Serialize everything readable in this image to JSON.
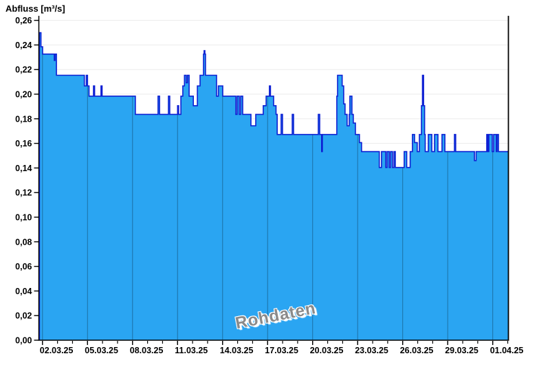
{
  "title": "Abfluss [m³/s]",
  "watermark": "Rohdaten",
  "colors": {
    "fill": "#2aa5f2",
    "line": "#0d1fd3",
    "axis": "#000000",
    "h_grid": "#ebebeb",
    "v_grid_on_fill": "rgba(0,0,0,0.32)",
    "label": "#000000",
    "watermark": "#8a8a8a"
  },
  "chart_data": {
    "type": "area",
    "subtype": "step-after",
    "title": "Abfluss [m³/s]",
    "xlabel": "",
    "ylabel": "Abfluss [m³/s]",
    "legend": "none",
    "grid": "horizontal light, vertical only visible inside filled area",
    "x_axis": {
      "unit": "date (day offset, 1 = 02.03.25 tick origin 01.03.25+1)",
      "range_days": [
        0.78,
        32.04
      ],
      "major_ticks": [
        {
          "day": 1,
          "label": "02.03.25"
        },
        {
          "day": 4,
          "label": "05.03.25"
        },
        {
          "day": 7,
          "label": "08.03.25"
        },
        {
          "day": 10,
          "label": "11.03.25"
        },
        {
          "day": 13,
          "label": "14.03.25"
        },
        {
          "day": 16,
          "label": "17.03.25"
        },
        {
          "day": 19,
          "label": "20.03.25"
        },
        {
          "day": 22,
          "label": "23.03.25"
        },
        {
          "day": 25,
          "label": "26.03.25"
        },
        {
          "day": 28,
          "label": "29.03.25"
        },
        {
          "day": 31,
          "label": "01.04.25"
        }
      ],
      "minor_tick_every_days": 1,
      "minor_tick_days": [
        1,
        2,
        3,
        4,
        5,
        6,
        7,
        8,
        9,
        10,
        11,
        12,
        13,
        14,
        15,
        16,
        17,
        18,
        19,
        20,
        21,
        22,
        23,
        24,
        25,
        26,
        27,
        28,
        29,
        30,
        31,
        32
      ]
    },
    "y_axis": {
      "unit": "m³/s",
      "ylim": [
        0,
        0.2637
      ],
      "ticks": [
        {
          "v": 0.0,
          "label": "0,00"
        },
        {
          "v": 0.02,
          "label": "0,02"
        },
        {
          "v": 0.04,
          "label": "0,04"
        },
        {
          "v": 0.06,
          "label": "0,06"
        },
        {
          "v": 0.08,
          "label": "0,08"
        },
        {
          "v": 0.1,
          "label": "0,10"
        },
        {
          "v": 0.12,
          "label": "0,12"
        },
        {
          "v": 0.14,
          "label": "0,14"
        },
        {
          "v": 0.16,
          "label": "0,16"
        },
        {
          "v": 0.18,
          "label": "0,18"
        },
        {
          "v": 0.2,
          "label": "0,20"
        },
        {
          "v": 0.22,
          "label": "0,22"
        },
        {
          "v": 0.24,
          "label": "0,24"
        },
        {
          "v": 0.26,
          "label": "0,26"
        }
      ]
    },
    "series": [
      {
        "name": "Rohdaten (Abfluss)",
        "end_day": 32.04,
        "points_day_value": [
          [
            0.8,
            0.25
          ],
          [
            0.9,
            0.2385
          ],
          [
            1.01,
            0.2326
          ],
          [
            1.79,
            0.2274
          ],
          [
            1.84,
            0.2326
          ],
          [
            1.93,
            0.2154
          ],
          [
            3.79,
            0.2067
          ],
          [
            3.92,
            0.2154
          ],
          [
            4.0,
            0.2067
          ],
          [
            4.1,
            0.1984
          ],
          [
            4.4,
            0.2067
          ],
          [
            4.47,
            0.1984
          ],
          [
            4.9,
            0.2067
          ],
          [
            4.97,
            0.1984
          ],
          [
            7.19,
            0.1836
          ],
          [
            8.7,
            0.1984
          ],
          [
            8.8,
            0.1836
          ],
          [
            9.39,
            0.1984
          ],
          [
            9.48,
            0.1836
          ],
          [
            10.0,
            0.1906
          ],
          [
            10.07,
            0.1836
          ],
          [
            10.22,
            0.1984
          ],
          [
            10.35,
            0.2067
          ],
          [
            10.46,
            0.2154
          ],
          [
            10.58,
            0.2093
          ],
          [
            10.66,
            0.2154
          ],
          [
            10.77,
            0.1984
          ],
          [
            11.05,
            0.1906
          ],
          [
            11.32,
            0.2067
          ],
          [
            11.5,
            0.2154
          ],
          [
            11.73,
            0.2326
          ],
          [
            11.77,
            0.2354
          ],
          [
            11.82,
            0.2326
          ],
          [
            11.86,
            0.2154
          ],
          [
            12.6,
            0.1984
          ],
          [
            12.72,
            0.2067
          ],
          [
            13.01,
            0.1984
          ],
          [
            13.88,
            0.1836
          ],
          [
            13.97,
            0.1984
          ],
          [
            14.11,
            0.1836
          ],
          [
            14.2,
            0.1984
          ],
          [
            14.34,
            0.1836
          ],
          [
            14.89,
            0.1743
          ],
          [
            15.21,
            0.1836
          ],
          [
            15.71,
            0.1906
          ],
          [
            15.9,
            0.1984
          ],
          [
            16.12,
            0.2067
          ],
          [
            16.19,
            0.1984
          ],
          [
            16.4,
            0.1906
          ],
          [
            16.56,
            0.1836
          ],
          [
            16.64,
            0.1672
          ],
          [
            16.9,
            0.1836
          ],
          [
            16.99,
            0.1672
          ],
          [
            17.64,
            0.1836
          ],
          [
            17.73,
            0.1672
          ],
          [
            19.38,
            0.1836
          ],
          [
            19.47,
            0.1672
          ],
          [
            19.6,
            0.1533
          ],
          [
            19.65,
            0.1672
          ],
          [
            20.61,
            0.1984
          ],
          [
            20.66,
            0.2154
          ],
          [
            20.97,
            0.2067
          ],
          [
            21.07,
            0.1921
          ],
          [
            21.16,
            0.1836
          ],
          [
            21.3,
            0.1743
          ],
          [
            21.44,
            0.1836
          ],
          [
            21.48,
            0.1984
          ],
          [
            21.62,
            0.1836
          ],
          [
            21.71,
            0.1765
          ],
          [
            21.85,
            0.1672
          ],
          [
            22.12,
            0.1607
          ],
          [
            22.26,
            0.1533
          ],
          [
            23.44,
            0.1404
          ],
          [
            23.59,
            0.1533
          ],
          [
            23.87,
            0.1404
          ],
          [
            23.96,
            0.1533
          ],
          [
            24.1,
            0.1404
          ],
          [
            24.19,
            0.1533
          ],
          [
            24.32,
            0.1404
          ],
          [
            24.42,
            0.1533
          ],
          [
            24.51,
            0.1404
          ],
          [
            25.1,
            0.1533
          ],
          [
            25.27,
            0.1404
          ],
          [
            25.5,
            0.1533
          ],
          [
            25.65,
            0.1672
          ],
          [
            25.79,
            0.1607
          ],
          [
            25.97,
            0.1533
          ],
          [
            26.11,
            0.1672
          ],
          [
            26.25,
            0.1906
          ],
          [
            26.32,
            0.2154
          ],
          [
            26.39,
            0.1906
          ],
          [
            26.46,
            0.1672
          ],
          [
            26.5,
            0.1533
          ],
          [
            26.71,
            0.1672
          ],
          [
            26.94,
            0.1533
          ],
          [
            27.12,
            0.1672
          ],
          [
            27.35,
            0.1533
          ],
          [
            27.62,
            0.1672
          ],
          [
            27.81,
            0.1533
          ],
          [
            28.45,
            0.1672
          ],
          [
            28.53,
            0.1533
          ],
          [
            29.78,
            0.146
          ],
          [
            29.89,
            0.1533
          ],
          [
            30.6,
            0.1672
          ],
          [
            30.67,
            0.1533
          ],
          [
            30.74,
            0.1672
          ],
          [
            30.97,
            0.1533
          ],
          [
            31.06,
            0.1672
          ],
          [
            31.24,
            0.1533
          ],
          [
            31.29,
            0.1672
          ],
          [
            31.38,
            0.1533
          ]
        ]
      }
    ],
    "annotations": [
      {
        "text": "Rohdaten",
        "style": "gray watermark with white halo, rotated",
        "approx_center_day": 16.5,
        "approx_value": 0.018
      }
    ]
  }
}
